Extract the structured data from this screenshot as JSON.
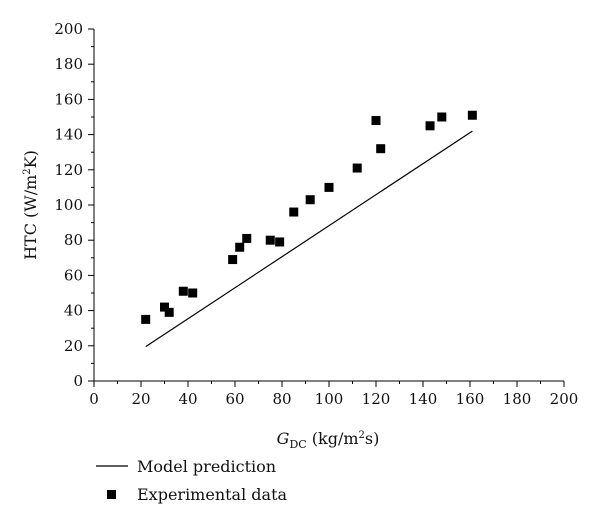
{
  "chart_data": {
    "type": "scatter",
    "xlabel": {
      "main": "G",
      "sub": "DC",
      "unit_pre": " (kg/m",
      "unit_sup": "2",
      "unit_post": "s)"
    },
    "ylabel": {
      "main": "HTC (W/m",
      "sup": "2",
      "post": "K)"
    },
    "xlim": [
      0,
      200
    ],
    "ylim": [
      0,
      200
    ],
    "x_ticks": [
      0,
      20,
      40,
      60,
      80,
      100,
      120,
      140,
      160,
      180,
      200
    ],
    "y_ticks": [
      0,
      20,
      40,
      60,
      80,
      100,
      120,
      140,
      160,
      180,
      200
    ],
    "grid": false,
    "legend_position": "bottom-left",
    "series": [
      {
        "name": "Model prediction",
        "style": "line",
        "color": "#000000",
        "points": [
          [
            22,
            19.5
          ],
          [
            161,
            142
          ]
        ]
      },
      {
        "name": "Experimental data",
        "style": "square-marker",
        "color": "#000000",
        "points": [
          [
            22,
            35
          ],
          [
            30,
            42
          ],
          [
            32,
            39
          ],
          [
            38,
            51
          ],
          [
            42,
            50
          ],
          [
            59,
            69
          ],
          [
            62,
            76
          ],
          [
            65,
            81
          ],
          [
            75,
            80
          ],
          [
            79,
            79
          ],
          [
            85,
            96
          ],
          [
            92,
            103
          ],
          [
            100,
            110
          ],
          [
            112,
            121
          ],
          [
            120,
            148
          ],
          [
            122,
            132
          ],
          [
            143,
            145
          ],
          [
            148,
            150
          ],
          [
            161,
            151
          ]
        ]
      }
    ]
  }
}
